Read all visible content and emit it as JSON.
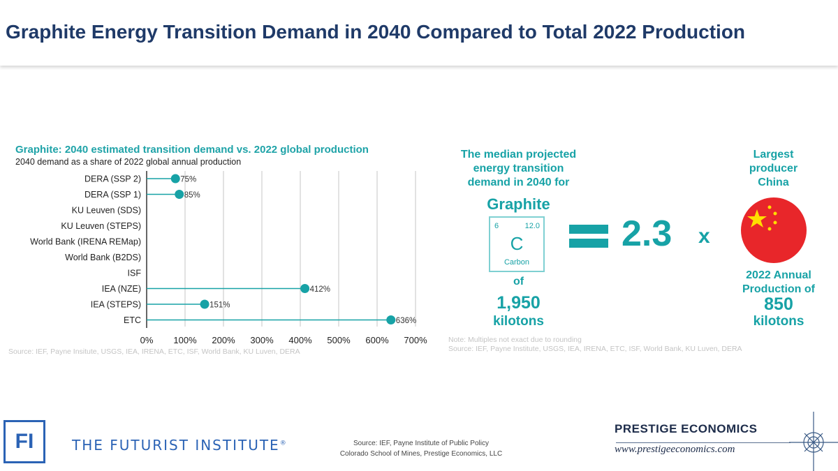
{
  "title": "Graphite Energy Transition Demand in 2040 Compared to Total 2022 Production",
  "chart_data": {
    "type": "lollipop",
    "title": "Graphite: 2040 estimated transition demand vs. 2022 global production",
    "subtitle": "2040 demand  as a share of 2022 global annual production",
    "categories": [
      "DERA (SSP 2)",
      "DERA (SSP 1)",
      "KU Leuven (SDS)",
      "KU Leuven (STEPS)",
      "World Bank (IRENA REMap)",
      "World Bank (B2DS)",
      "ISF",
      "IEA (NZE)",
      "IEA (STEPS)",
      "ETC"
    ],
    "values": [
      75,
      85,
      null,
      null,
      null,
      null,
      null,
      412,
      151,
      636
    ],
    "data_labels": [
      "75%",
      "85%",
      "",
      "",
      "",
      "",
      "",
      "412%",
      "151%",
      "636%"
    ],
    "xlim": [
      0,
      700
    ],
    "xticks": [
      "0%",
      "100%",
      "200%",
      "300%",
      "400%",
      "500%",
      "600%",
      "700%"
    ],
    "grid": "vertical",
    "color": "#17a2a6",
    "source": "Source: IEF, Payne Insitute, USGS,  IEA, IRENA, ETC, ISF, World Bank, KU Luven,  DERA"
  },
  "infographic": {
    "intro": [
      "The median projected",
      "energy transition",
      "demand in 2040 for"
    ],
    "mineral": "Graphite",
    "element": {
      "number": "6",
      "mass": "12.0",
      "symbol": "C",
      "name": "Carbon"
    },
    "of": "of",
    "demand_value": "1,950",
    "demand_unit": "kilotons",
    "multiple": "2.3",
    "times": "x",
    "producer_label": [
      "Largest",
      "producer",
      "China"
    ],
    "production_label": [
      "2022 Annual",
      "Production of"
    ],
    "production_value": "850",
    "production_unit": "kilotons",
    "note": "Note: Multiples  not exact due to rounding",
    "source": "Source: IEF, Payne Institute,  USGS,  IEA, IRENA,  ETC,  ISF,  World Bank,  KU Luven,  DERA"
  },
  "footer": {
    "fi_logo": "FI",
    "fi_name": "THE FUTURIST INSTITUTE",
    "fi_reg": "®",
    "source_lines": [
      "Source:  IEF, Payne Institute of Public Policy",
      "Colorado School of Mines, Prestige Economics, LLC"
    ],
    "pe_name": "PRESTIGE ECONOMICS",
    "pe_url": "www.prestigeeconomics.com"
  }
}
